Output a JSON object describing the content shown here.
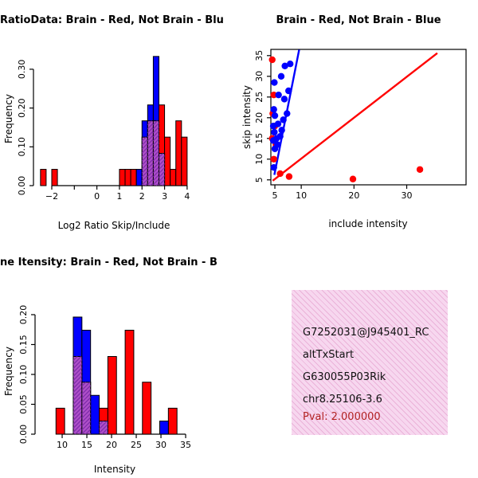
{
  "app": {
    "type": "R graphics multi-panel plot",
    "background": "#FFFFFF"
  },
  "colors": {
    "red_series": "#FF0000",
    "blue_series": "#0000FF",
    "overlap_fill": "#AE4FC8",
    "overlap_hatch": "#7C2BAA",
    "axis": "#000000",
    "info_box_bg": "#F7D7EF",
    "info_box_hatch": "#DB86BD",
    "pval_text": "#B22222"
  },
  "panels": {
    "top_left": {
      "title": "RatioData: Brain - Red, Not Brain - Blu",
      "xlabel": "Log2 Ratio Skip/Include",
      "ylabel": "Frequency"
    },
    "top_right": {
      "title": "Brain - Red, Not Brain - Blue",
      "xlabel": "include intensity",
      "ylabel": "skip intensity"
    },
    "bottom_left": {
      "title": "ne Itensity: Brain - Red, Not Brain - B",
      "xlabel": "Intensity",
      "ylabel": "Frequency"
    },
    "bottom_right": {
      "lines": [
        "G7252031@J945401_RC",
        "altTxStart",
        "G630055P03Rik",
        "chr8.25106-3.6"
      ],
      "pval": "Pval: 2.000000"
    }
  },
  "chart_data": [
    {
      "id": "log2_ratio_hist",
      "type": "bar",
      "title": "RatioData: Brain - Red, Not Brain - Blu",
      "xlabel": "Log2 Ratio Skip/Include",
      "ylabel": "Frequency",
      "xlim": [
        -2.6,
        4.11
      ],
      "ylim": [
        0,
        0.345
      ],
      "grid": false,
      "bin_width": 0.25,
      "xticks": [
        -2,
        -1,
        0,
        1,
        2,
        3,
        4
      ],
      "xtick_labels": [
        "−2",
        "",
        "0",
        "1",
        "2",
        "3",
        "4"
      ],
      "yticks": [
        0,
        0.1,
        0.2,
        0.3
      ],
      "ytick_labels": [
        "0.00",
        "0.10",
        "0.20",
        "0.30"
      ],
      "series": [
        {
          "name": "brain-red",
          "color": "#FF0000",
          "bins": [
            [
              -2.5,
              0.042
            ],
            [
              -2.0,
              0.042
            ],
            [
              1.0,
              0.042
            ],
            [
              1.25,
              0.042
            ],
            [
              1.5,
              0.042
            ],
            [
              2.0,
              0.125
            ],
            [
              2.25,
              0.167
            ],
            [
              2.5,
              0.167
            ],
            [
              2.75,
              0.208
            ],
            [
              3.0,
              0.125
            ],
            [
              3.25,
              0.042
            ],
            [
              3.5,
              0.167
            ],
            [
              3.75,
              0.125
            ]
          ]
        },
        {
          "name": "notbrain-blue",
          "color": "#0000FF",
          "bins": [
            [
              1.75,
              0.042
            ],
            [
              2.0,
              0.167
            ],
            [
              2.25,
              0.208
            ],
            [
              2.5,
              0.333
            ],
            [
              2.75,
              0.083
            ]
          ]
        }
      ]
    },
    {
      "id": "intensity_scatter",
      "type": "scatter",
      "title": "Brain - Red, Not Brain - Blue",
      "xlabel": "include intensity",
      "ylabel": "skip intensity",
      "xlim": [
        4.24,
        41.25
      ],
      "ylim": [
        3.8,
        36.5
      ],
      "grid": false,
      "xticks": [
        5,
        10,
        20,
        30
      ],
      "xtick_labels": [
        "5",
        "10",
        "20",
        "30"
      ],
      "yticks": [
        5,
        10,
        15,
        20,
        25,
        30,
        35
      ],
      "ytick_labels": [
        "5",
        "10",
        "15",
        "20",
        "25",
        "30",
        "35"
      ],
      "series": [
        {
          "name": "brain-red",
          "color": "#FF0000",
          "points": [
            [
              4.5,
              34
            ],
            [
              4.8,
              25.5
            ],
            [
              4.6,
              21
            ],
            [
              5.0,
              18
            ],
            [
              4.5,
              15
            ],
            [
              5.2,
              13.5
            ],
            [
              4.8,
              10
            ],
            [
              6.0,
              6.5
            ],
            [
              7.7,
              5.8
            ],
            [
              19.8,
              5.2
            ],
            [
              32.5,
              7.5
            ]
          ]
        },
        {
          "name": "notbrain-blue",
          "color": "#0000FF",
          "points": [
            [
              4.8,
              8
            ],
            [
              5.0,
              12.5
            ],
            [
              5.5,
              13.5
            ],
            [
              4.7,
              14.5
            ],
            [
              5.3,
              15
            ],
            [
              6.0,
              15.5
            ],
            [
              4.9,
              16.5
            ],
            [
              6.3,
              17
            ],
            [
              4.7,
              18
            ],
            [
              5.6,
              18.5
            ],
            [
              6.6,
              19.5
            ],
            [
              5.0,
              20.5
            ],
            [
              7.3,
              21
            ],
            [
              4.8,
              22
            ],
            [
              6.8,
              24.5
            ],
            [
              5.7,
              25.5
            ],
            [
              7.6,
              26.5
            ],
            [
              4.9,
              28.5
            ],
            [
              6.2,
              30
            ],
            [
              6.9,
              32.5
            ],
            [
              7.9,
              33
            ]
          ]
        }
      ],
      "lines": [
        {
          "name": "identity-line-red",
          "color": "#FF0000",
          "x1": 4.6,
          "y1": 4.8,
          "x2": 35.8,
          "y2": 35.6
        },
        {
          "name": "fit-line-blue",
          "color": "#0000FF",
          "x1": 4.9,
          "y1": 6.2,
          "x2": 9.6,
          "y2": 36.4
        }
      ]
    },
    {
      "id": "gene_intensity_hist",
      "type": "bar",
      "title": "ne Itensity: Brain - Red, Not Brain - B",
      "xlabel": "Intensity",
      "ylabel": "Frequency",
      "xlim": [
        5.48,
        35.8
      ],
      "ylim": [
        0,
        0.2093
      ],
      "grid": false,
      "bin_width": 1.75,
      "xticks": [
        10,
        15,
        20,
        25,
        30,
        35
      ],
      "xtick_labels": [
        "10",
        "15",
        "20",
        "25",
        "30",
        "35"
      ],
      "yticks": [
        0,
        0.05,
        0.1,
        0.15,
        0.2
      ],
      "ytick_labels": [
        "0.00",
        "0.05",
        "0.10",
        "0.15",
        "0.20"
      ],
      "series": [
        {
          "name": "brain-red",
          "color": "#FF0000",
          "bins": [
            [
              8.75,
              0.0435
            ],
            [
              12.25,
              0.13
            ],
            [
              14.0,
              0.087
            ],
            [
              17.5,
              0.0435
            ],
            [
              19.25,
              0.13
            ],
            [
              22.75,
              0.174
            ],
            [
              26.25,
              0.087
            ],
            [
              31.5,
              0.0435
            ]
          ]
        },
        {
          "name": "notbrain-blue",
          "color": "#0000FF",
          "bins": [
            [
              12.25,
              0.196
            ],
            [
              14.0,
              0.174
            ],
            [
              15.75,
              0.065
            ],
            [
              17.5,
              0.022
            ],
            [
              29.75,
              0.022
            ]
          ]
        }
      ]
    }
  ]
}
